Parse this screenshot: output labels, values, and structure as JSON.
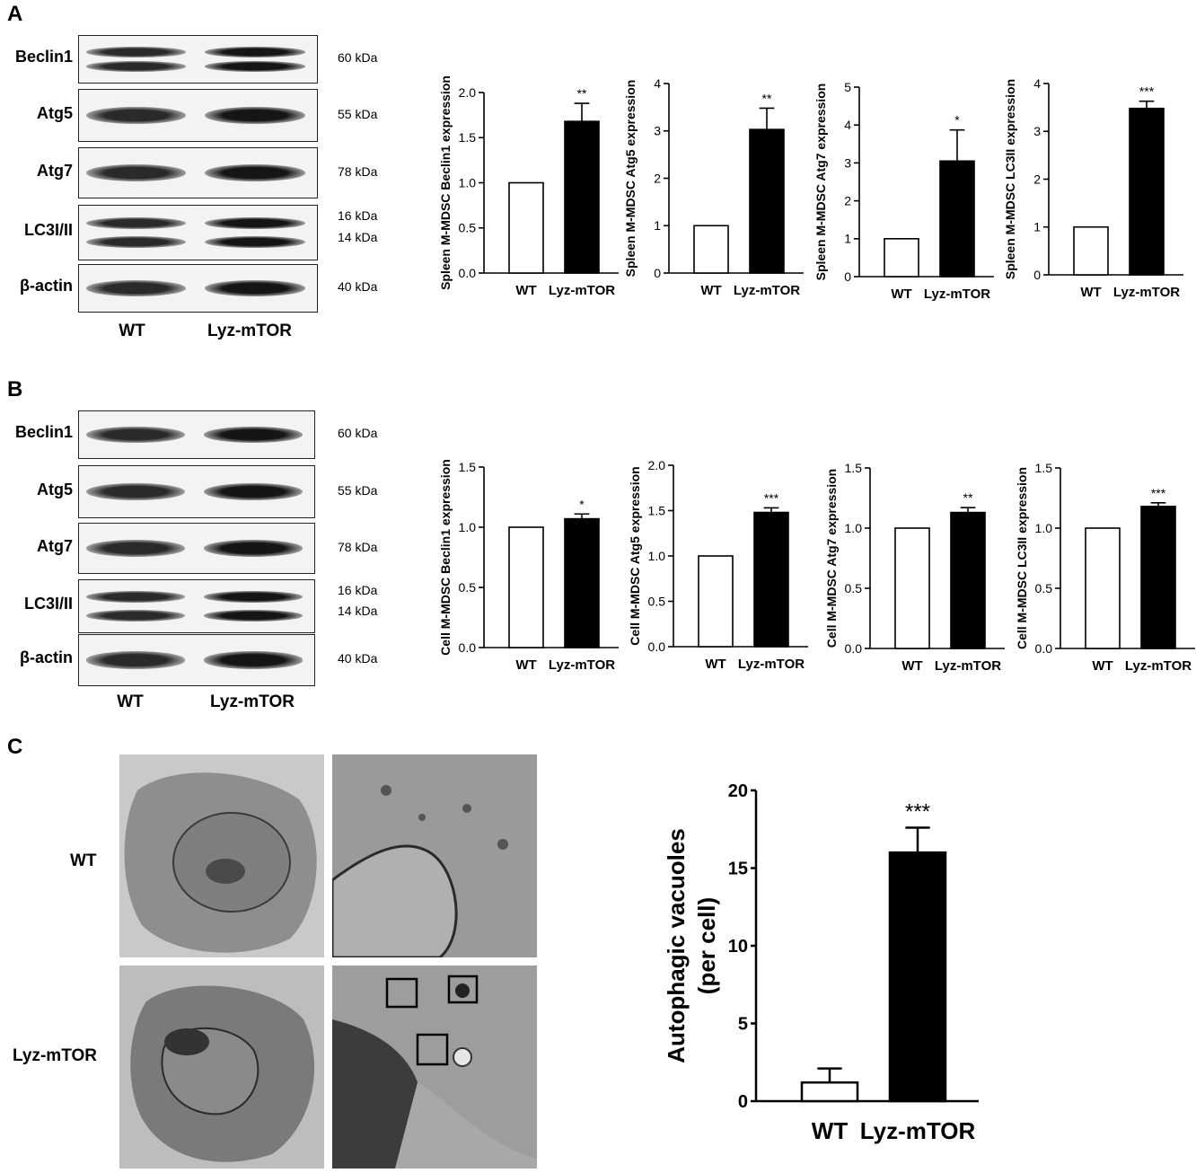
{
  "panels": {
    "A": {
      "letter": "A",
      "blots": [
        {
          "label": "Beclin1",
          "kda": "60 kDa"
        },
        {
          "label": "Atg5",
          "kda": "55 kDa"
        },
        {
          "label": "Atg7",
          "kda": "78 kDa"
        },
        {
          "label": "LC3I/II",
          "kda": "16 kDa",
          "kda2": "14 kDa"
        },
        {
          "label": "β-actin",
          "kda": "40 kDa"
        }
      ],
      "lanes": [
        "WT",
        "Lyz-mTOR"
      ]
    },
    "B": {
      "letter": "B",
      "blots": [
        {
          "label": "Beclin1",
          "kda": "60 kDa"
        },
        {
          "label": "Atg5",
          "kda": "55 kDa"
        },
        {
          "label": "Atg7",
          "kda": "78 kDa"
        },
        {
          "label": "LC3I/II",
          "kda": "16 kDa",
          "kda2": "14 kDa"
        },
        {
          "label": "β-actin",
          "kda": "40 kDa"
        }
      ],
      "lanes": [
        "WT",
        "Lyz-mTOR"
      ]
    },
    "C": {
      "letter": "C",
      "row_labels": [
        "WT",
        "Lyz-mTOR"
      ]
    }
  },
  "chart_data": [
    {
      "type": "bar",
      "panel": "A",
      "ylabel": "Spleen M-MDSC Beclin1 expression",
      "categories": [
        "WT",
        "Lyz-mTOR"
      ],
      "values": [
        1.0,
        1.68
      ],
      "errors": [
        0,
        0.2
      ],
      "ylim": [
        0,
        2.0
      ],
      "yticks": [
        "0.0",
        "0.5",
        "1.0",
        "1.5",
        "2.0"
      ],
      "significance": "**"
    },
    {
      "type": "bar",
      "panel": "A",
      "ylabel": "Spleen M-MDSC Atg5 expression",
      "categories": [
        "WT",
        "Lyz-mTOR"
      ],
      "values": [
        1.0,
        3.03
      ],
      "errors": [
        0,
        0.45
      ],
      "ylim": [
        0,
        4
      ],
      "yticks": [
        "0",
        "1",
        "2",
        "3",
        "4"
      ],
      "significance": "**"
    },
    {
      "type": "bar",
      "panel": "A",
      "ylabel": "Spleen M-MDSC Atg7 expression",
      "categories": [
        "WT",
        "Lyz-mTOR"
      ],
      "values": [
        1.0,
        3.05
      ],
      "errors": [
        0,
        0.82
      ],
      "ylim": [
        0,
        5
      ],
      "yticks": [
        "0",
        "1",
        "2",
        "3",
        "4",
        "5"
      ],
      "significance": "*"
    },
    {
      "type": "bar",
      "panel": "A",
      "ylabel": "Spleen M-MDSC LC3II expression",
      "categories": [
        "WT",
        "Lyz-mTOR"
      ],
      "values": [
        1.0,
        3.48
      ],
      "errors": [
        0,
        0.15
      ],
      "ylim": [
        0,
        4
      ],
      "yticks": [
        "0",
        "1",
        "2",
        "3",
        "4"
      ],
      "significance": "***"
    },
    {
      "type": "bar",
      "panel": "B",
      "ylabel": "Cell M-MDSC Beclin1 expression",
      "categories": [
        "WT",
        "Lyz-mTOR"
      ],
      "values": [
        1.0,
        1.07
      ],
      "errors": [
        0,
        0.04
      ],
      "ylim": [
        0,
        1.5
      ],
      "yticks": [
        "0.0",
        "0.5",
        "1.0",
        "1.5"
      ],
      "significance": "*"
    },
    {
      "type": "bar",
      "panel": "B",
      "ylabel": "Cell M-MDSC Atg5 expression",
      "categories": [
        "WT",
        "Lyz-mTOR"
      ],
      "values": [
        1.0,
        1.48
      ],
      "errors": [
        0,
        0.05
      ],
      "ylim": [
        0,
        2.0
      ],
      "yticks": [
        "0.0",
        "0.5",
        "1.0",
        "1.5",
        "2.0"
      ],
      "significance": "***"
    },
    {
      "type": "bar",
      "panel": "B",
      "ylabel": "Cell M-MDSC Atg7 expression",
      "categories": [
        "WT",
        "Lyz-mTOR"
      ],
      "values": [
        1.0,
        1.13
      ],
      "errors": [
        0,
        0.04
      ],
      "ylim": [
        0,
        1.5
      ],
      "yticks": [
        "0.0",
        "0.5",
        "1.0",
        "1.5"
      ],
      "significance": "**"
    },
    {
      "type": "bar",
      "panel": "B",
      "ylabel": "Cell M-MDSC LC3II expression",
      "categories": [
        "WT",
        "Lyz-mTOR"
      ],
      "values": [
        1.0,
        1.18
      ],
      "errors": [
        0,
        0.03
      ],
      "ylim": [
        0,
        1.5
      ],
      "yticks": [
        "0.0",
        "0.5",
        "1.0",
        "1.5"
      ],
      "significance": "***"
    },
    {
      "type": "bar",
      "panel": "C",
      "ylabel": "Autophagic vacuoles (per cell)",
      "ylabel_lines": [
        "Autophagic vacuoles",
        "(per cell)"
      ],
      "categories": [
        "WT",
        "Lyz-mTOR"
      ],
      "values": [
        1.2,
        16.0
      ],
      "errors": [
        0.9,
        1.6
      ],
      "ylim": [
        0,
        20
      ],
      "yticks": [
        "0",
        "5",
        "10",
        "15",
        "20"
      ],
      "significance": "***"
    }
  ],
  "colors": {
    "wt_bar": "#ffffff",
    "mtor_bar": "#000000",
    "axis": "#000000"
  }
}
